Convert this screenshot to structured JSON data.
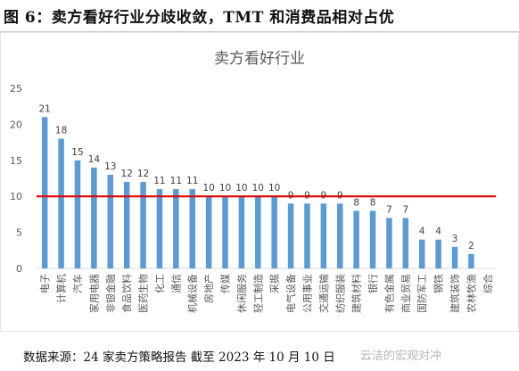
{
  "figure_title": "图 6：卖方看好行业分歧收敛，TMT 和消费品相对占优",
  "source_note": "数据来源：24 家卖方策略报告 截至 2023 年 10 月 10 日",
  "watermark": "云洁的宏观对冲",
  "colors": {
    "bar": "#5b9bd5",
    "threshold_line": "#e00000",
    "axis": "#d9d9d9",
    "text": "#595959"
  },
  "chart_data": {
    "type": "bar",
    "title": "卖方看好行业",
    "xlabel": "",
    "ylabel": "",
    "ylim": [
      0,
      25
    ],
    "yticks": [
      0,
      5,
      10,
      15,
      20,
      25
    ],
    "grid": false,
    "legend": "none",
    "threshold": 10,
    "categories": [
      "电子",
      "计算机",
      "汽车",
      "家用电器",
      "非银金融",
      "食品饮料",
      "医药生物",
      "化工",
      "通信",
      "机械设备",
      "房地产",
      "传媒",
      "休闲服务",
      "轻工制造",
      "采掘",
      "电气设备",
      "公用事业",
      "交通运输",
      "纺织服装",
      "建筑材料",
      "银行",
      "有色金属",
      "商业贸易",
      "国防军工",
      "钢铁",
      "建筑装饰",
      "农林牧渔",
      "综合"
    ],
    "values": [
      21,
      18,
      15,
      14,
      13,
      12,
      12,
      11,
      11,
      11,
      10,
      10,
      10,
      10,
      10,
      9,
      9,
      9,
      9,
      8,
      8,
      7,
      7,
      4,
      4,
      3,
      2,
      0
    ],
    "data_labels": [
      "21",
      "18",
      "15",
      "14",
      "13",
      "12",
      "12",
      "11",
      "11",
      "11",
      "10",
      "10",
      "10",
      "10",
      "10",
      "9",
      "9",
      "9",
      "9",
      "8",
      "8",
      "7",
      "7",
      "4",
      "4",
      "3",
      "2",
      ""
    ]
  }
}
